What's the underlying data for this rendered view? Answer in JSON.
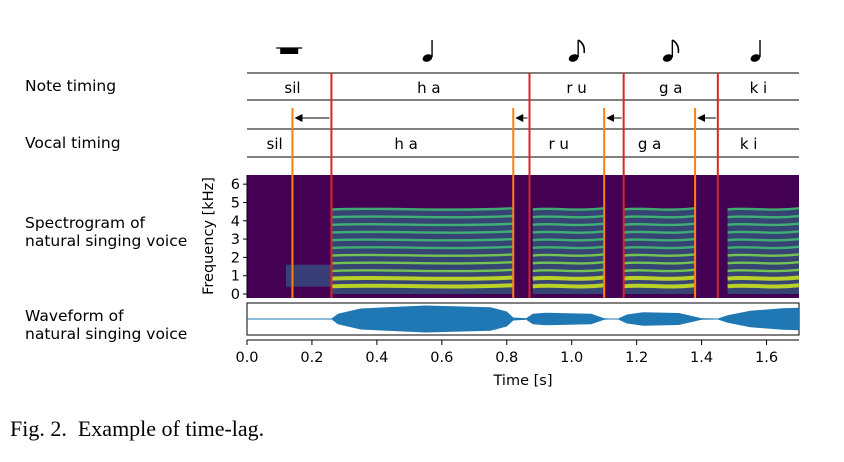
{
  "figure": {
    "caption_label": "Fig. 2.",
    "caption_text": "Example of time-lag.",
    "rows": {
      "note_timing": "Note timing",
      "vocal_timing": "Vocal timing",
      "spectrogram": [
        "Spectrogram of",
        "natural singing voice"
      ],
      "waveform": [
        "Waveform of",
        "natural singing voice"
      ]
    },
    "notes": [
      {
        "symbol": "rest",
        "start": 0.0,
        "end": 0.26
      },
      {
        "symbol": "quarter",
        "start": 0.26,
        "end": 0.87
      },
      {
        "symbol": "eighth",
        "start": 0.87,
        "end": 1.16
      },
      {
        "symbol": "eighth",
        "start": 1.16,
        "end": 1.45
      },
      {
        "symbol": "quarter",
        "start": 1.45,
        "end": 1.7
      }
    ],
    "note_phonemes": [
      {
        "label": "sil",
        "t": 0.14
      },
      {
        "label": "h a",
        "t": 0.56
      },
      {
        "label": "r u",
        "t": 1.015
      },
      {
        "label": "g a",
        "t": 1.305
      },
      {
        "label": "k i",
        "t": 1.575
      }
    ],
    "vocal_phonemes": [
      {
        "label": "sil",
        "t": 0.085
      },
      {
        "label": "h a",
        "t": 0.49
      },
      {
        "label": "r u",
        "t": 0.96
      },
      {
        "label": "g a",
        "t": 1.24
      },
      {
        "label": "k i",
        "t": 1.545
      }
    ],
    "note_boundaries": [
      0.26,
      0.87,
      1.16,
      1.45
    ],
    "vocal_boundaries": [
      0.14,
      0.82,
      1.1,
      1.38
    ],
    "colors": {
      "note_boundary": "#d62728",
      "vocal_boundary": "#ff7f0e",
      "waveform": "#1f77b4",
      "spectrogram_bg": "#440154"
    }
  },
  "chart_data": [
    {
      "type": "heatmap",
      "title": "Spectrogram of natural singing voice",
      "ylabel": "Frequency [kHz]",
      "yticks": [
        "0",
        "1",
        "2",
        "3",
        "4",
        "5",
        "6"
      ],
      "ylim": [
        0,
        6.5
      ],
      "xlim": [
        0.0,
        1.7
      ],
      "colormap": "viridis",
      "voiced_segments": [
        [
          0.26,
          0.82
        ],
        [
          0.88,
          1.1
        ],
        [
          1.16,
          1.38
        ],
        [
          1.48,
          1.7
        ]
      ]
    },
    {
      "type": "line",
      "title": "Waveform of natural singing voice",
      "xlabel": "Time [s]",
      "xticks": [
        "0.0",
        "0.2",
        "0.4",
        "0.6",
        "0.8",
        "1.0",
        "1.2",
        "1.4",
        "1.6"
      ],
      "xlim": [
        0.0,
        1.7
      ],
      "envelope": {
        "t": [
          0.0,
          0.2,
          0.26,
          0.28,
          0.35,
          0.55,
          0.75,
          0.8,
          0.82,
          0.86,
          0.88,
          0.92,
          1.06,
          1.1,
          1.14,
          1.17,
          1.22,
          1.33,
          1.37,
          1.4,
          1.45,
          1.48,
          1.55,
          1.65,
          1.7
        ],
        "amp": [
          0.0,
          0.0,
          0.02,
          0.35,
          0.7,
          0.9,
          0.78,
          0.5,
          0.1,
          0.05,
          0.35,
          0.42,
          0.35,
          0.05,
          0.0,
          0.3,
          0.45,
          0.4,
          0.2,
          0.05,
          0.03,
          0.25,
          0.55,
          0.72,
          0.75
        ]
      }
    }
  ]
}
